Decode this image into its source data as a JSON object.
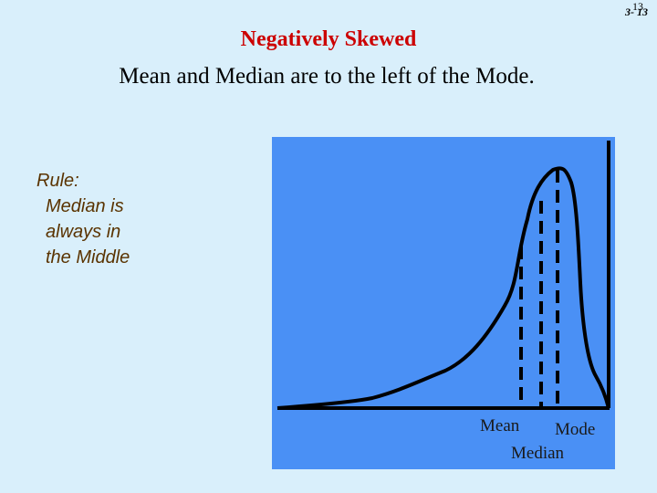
{
  "slide": {
    "number_back": "13",
    "number_front": "3- 13"
  },
  "title": "Negatively Skewed",
  "subtitle": "Mean and Median are to the left of the Mode.",
  "rule": {
    "heading": "Rule:",
    "lines": [
      "Median is",
      "always in",
      "the Middle"
    ]
  },
  "diagram": {
    "labels": {
      "mean": "Mean",
      "mode": "Mode",
      "median": "Median"
    },
    "colors": {
      "panel": "#4a90f5",
      "curve": "#000000"
    }
  }
}
